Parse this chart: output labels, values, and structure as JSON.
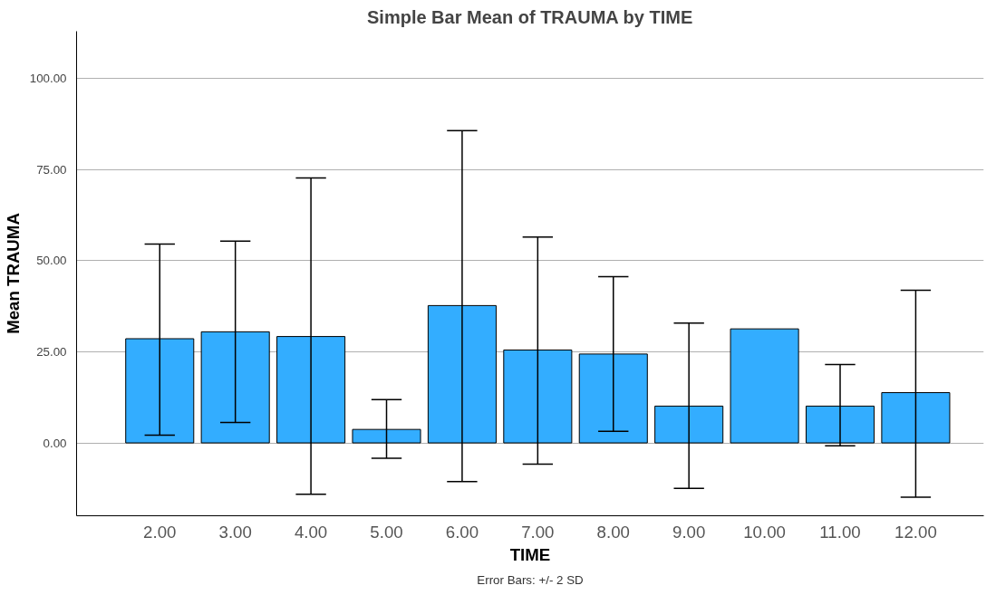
{
  "chart_data": {
    "type": "bar",
    "title": "Simple Bar Mean of TRAUMA by TIME",
    "xlabel": "TIME",
    "ylabel": "Mean TRAUMA",
    "categories": [
      "2.00",
      "3.00",
      "4.00",
      "5.00",
      "6.00",
      "7.00",
      "8.00",
      "9.00",
      "10.00",
      "11.00",
      "12.00"
    ],
    "values": [
      28.6,
      30.5,
      29.2,
      3.7,
      37.7,
      25.5,
      24.4,
      10.1,
      31.3,
      10.1,
      13.8
    ],
    "errors": [
      [
        2.1,
        54.6
      ],
      [
        5.6,
        55.4
      ],
      [
        -14.1,
        72.7
      ],
      [
        -4.2,
        11.9
      ],
      [
        -10.6,
        85.7
      ],
      [
        -5.8,
        56.5
      ],
      [
        3.2,
        45.6
      ],
      [
        -12.5,
        32.9
      ],
      null,
      [
        -0.8,
        21.5
      ],
      [
        -14.9,
        41.9
      ]
    ],
    "color": "#33adff",
    "ylim": [
      -20,
      113
    ],
    "yticks": [
      {
        "value": 0,
        "label": "0.00"
      },
      {
        "value": 25,
        "label": "25.00"
      },
      {
        "value": 50,
        "label": "50.00"
      },
      {
        "value": 75,
        "label": "75.00"
      },
      {
        "value": 100,
        "label": "100.00"
      }
    ],
    "grid": "y",
    "annotations": [
      "Error Bars: +/- 2 SD"
    ]
  }
}
